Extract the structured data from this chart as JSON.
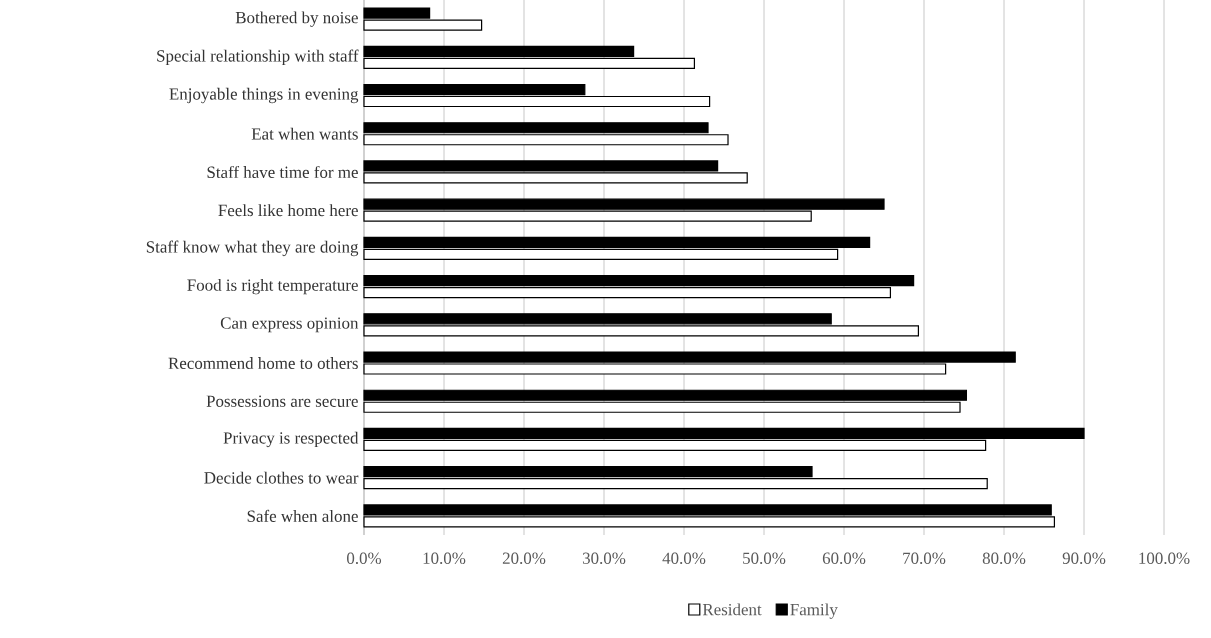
{
  "chart_data": {
    "type": "bar",
    "orientation": "horizontal",
    "categories": [
      "Bothered by noise",
      "Special relationship with staff",
      "Enjoyable things in evening",
      "Eat when wants",
      "Staff have time for me",
      "Feels like home here",
      "Staff know what they are doing",
      "Food is right temperature",
      "Can express opinion",
      "Recommend home to others",
      "Possessions are secure",
      "Privacy is respected",
      "Decide clothes to wear",
      "Safe when alone"
    ],
    "series": [
      {
        "name": "Resident",
        "color": "#ffffff",
        "values": [
          14.7,
          41.3,
          43.2,
          45.5,
          47.9,
          55.9,
          59.2,
          65.8,
          69.3,
          72.7,
          74.5,
          77.7,
          77.9,
          86.3
        ]
      },
      {
        "name": "Family",
        "color": "#000000",
        "values": [
          8.2,
          33.7,
          27.6,
          43.0,
          44.2,
          65.0,
          63.2,
          68.7,
          58.4,
          81.4,
          75.3,
          90.0,
          56.0,
          85.9
        ]
      }
    ],
    "xlim": [
      0,
      100
    ],
    "xticks": [
      {
        "value": 0,
        "label": "0.0%"
      },
      {
        "value": 10,
        "label": "10.0%"
      },
      {
        "value": 20,
        "label": "20.0%"
      },
      {
        "value": 30,
        "label": "30.0%"
      },
      {
        "value": 40,
        "label": "40.0%"
      },
      {
        "value": 50,
        "label": "50.0%"
      },
      {
        "value": 60,
        "label": "60.0%"
      },
      {
        "value": 70,
        "label": "70.0%"
      },
      {
        "value": 80,
        "label": "80.0%"
      },
      {
        "value": 90,
        "label": "90.0%"
      },
      {
        "value": 100,
        "label": "100.0%"
      }
    ],
    "grid": "x",
    "legend": "bottom"
  }
}
